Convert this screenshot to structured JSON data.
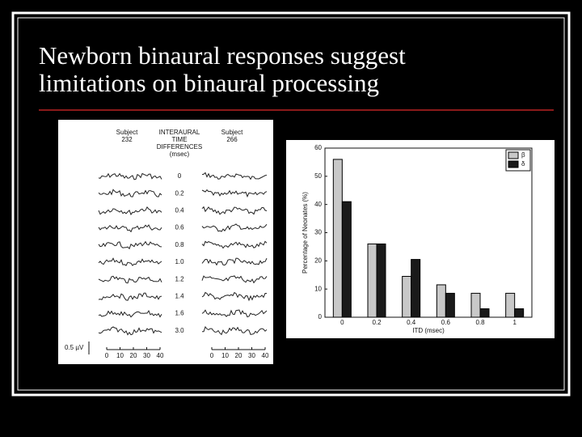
{
  "slide": {
    "title": [
      "Newborn binaural responses suggest",
      "limitations on binaural processing"
    ]
  },
  "figure": {
    "left_header": [
      "Subject",
      "232"
    ],
    "middle_header": [
      "INTERAURAL",
      "TIME",
      "DIFFERENCES",
      "(msec)"
    ],
    "right_header": [
      "Subject",
      "266"
    ],
    "rows": [
      "0",
      "0.2",
      "0.4",
      "0.6",
      "0.8",
      "1.0",
      "1.2",
      "1.4",
      "1.6",
      "3.0"
    ],
    "scale": "0.5 µV",
    "axis_labels": [
      "0",
      "10",
      "20",
      "30",
      "40"
    ]
  },
  "chart_data": {
    "type": "bar",
    "xlabel": "ITD (msec)",
    "ylabel": "Percentage of Neonates (%)",
    "categories": [
      "0",
      "0.2",
      "0.4",
      "0.6",
      "0.8",
      "1"
    ],
    "series": [
      {
        "name": "β",
        "color": "#c8c8c8",
        "values": [
          56,
          26,
          14.5,
          11.5,
          8.5,
          8.5
        ]
      },
      {
        "name": "δ",
        "color": "#1a1a1a",
        "values": [
          41,
          26,
          20.5,
          8.5,
          3,
          3
        ]
      }
    ],
    "ylim": [
      0,
      60
    ],
    "yticks": [
      0,
      10,
      20,
      30,
      40,
      50,
      60
    ],
    "legend": "upper right"
  }
}
